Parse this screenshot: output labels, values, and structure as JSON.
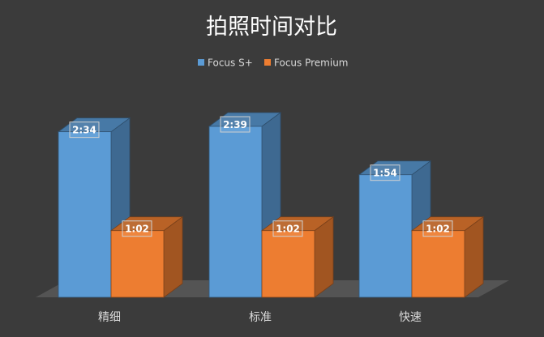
{
  "chart_data": {
    "type": "bar",
    "title": "拍照时间对比",
    "categories": [
      "精细",
      "标准",
      "快速"
    ],
    "series": [
      {
        "name": "Focus S+",
        "values": [
          154,
          159,
          114
        ],
        "labels": [
          "2:34",
          "2:39",
          "1:54"
        ],
        "color": "#5b9bd5"
      },
      {
        "name": "Focus Premium",
        "values": [
          62,
          62,
          62
        ],
        "labels": [
          "1:02",
          "1:02",
          "1:02"
        ],
        "color": "#ed7d31"
      }
    ],
    "value_unit": "seconds",
    "legend_position": "top-center",
    "grid": false,
    "style": "3d-clustered-column"
  }
}
